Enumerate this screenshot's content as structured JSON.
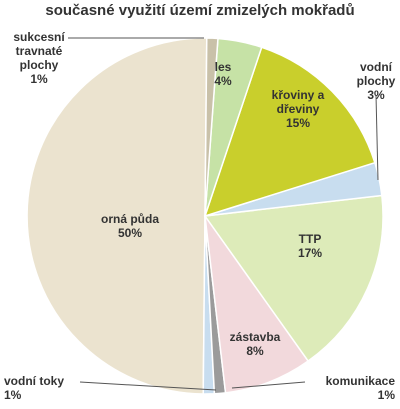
{
  "chart_data": {
    "type": "pie",
    "title": "současné využití území zmizelých mokřadů",
    "categories": [
      "sukcesní travnaté plochy",
      "les",
      "křoviny a dřeviny",
      "vodní plochy",
      "TTP",
      "zástavba",
      "komunikace",
      "vodní toky",
      "orná půda"
    ],
    "values": [
      1,
      4,
      15,
      3,
      17,
      8,
      1,
      1,
      50
    ],
    "value_labels": [
      "1%",
      "4%",
      "15%",
      "3%",
      "17%",
      "8%",
      "1%",
      "1%",
      "50%"
    ],
    "colors": [
      "#c9c1a9",
      "#c6e2a6",
      "#c9cf2c",
      "#c8ddef",
      "#ddebb9",
      "#f2d9dc",
      "#9b9b9b",
      "#c8ddef",
      "#ebe3cf"
    ]
  }
}
